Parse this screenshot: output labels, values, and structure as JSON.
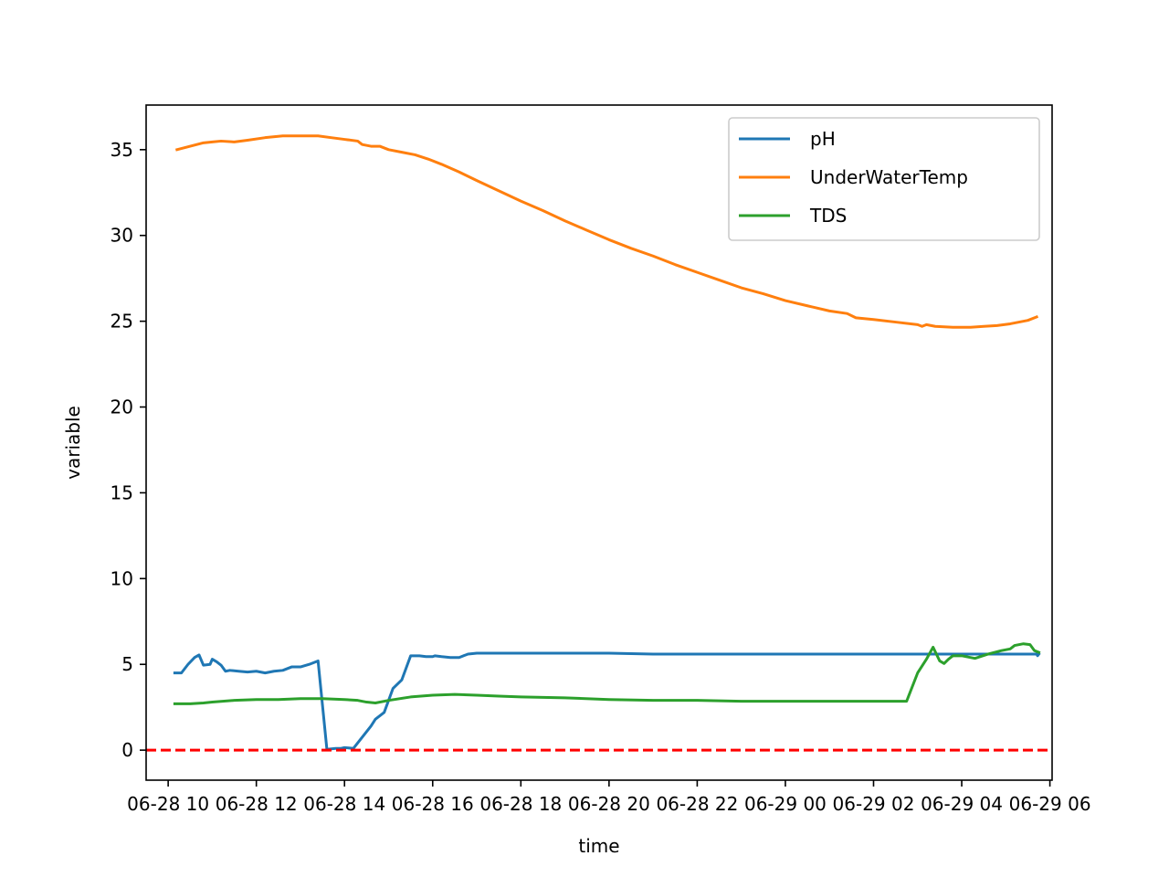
{
  "chart_data": {
    "type": "line",
    "title": "",
    "xlabel": "time",
    "ylabel": "variable",
    "x_ticks": [
      {
        "t": 10,
        "label": "06-28 10"
      },
      {
        "t": 12,
        "label": "06-28 12"
      },
      {
        "t": 14,
        "label": "06-28 14"
      },
      {
        "t": 16,
        "label": "06-28 16"
      },
      {
        "t": 18,
        "label": "06-28 18"
      },
      {
        "t": 20,
        "label": "06-28 20"
      },
      {
        "t": 22,
        "label": "06-28 22"
      },
      {
        "t": 24,
        "label": "06-29 00"
      },
      {
        "t": 26,
        "label": "06-29 02"
      },
      {
        "t": 28,
        "label": "06-29 04"
      },
      {
        "t": 30,
        "label": "06-29 06"
      }
    ],
    "y_ticks": [
      0,
      5,
      10,
      15,
      20,
      25,
      30,
      35
    ],
    "xlim": [
      9.5,
      30.05
    ],
    "ylim": [
      -1.75,
      37.6
    ],
    "grid": false,
    "legend_position": "top-right",
    "hline": {
      "value": 0,
      "color": "#ff0000",
      "style": "dashed"
    },
    "series": [
      {
        "name": "pH",
        "color": "#1f77b4",
        "x": [
          10.15,
          10.3,
          10.45,
          10.6,
          10.7,
          10.8,
          10.95,
          11.0,
          11.1,
          11.2,
          11.3,
          11.4,
          11.6,
          11.8,
          12.0,
          12.2,
          12.4,
          12.6,
          12.8,
          13.0,
          13.2,
          13.4,
          13.6,
          13.8,
          13.92,
          14.0,
          14.2,
          14.6,
          14.7,
          14.9,
          15.1,
          15.3,
          15.5,
          15.7,
          15.85,
          16.0,
          16.05,
          16.2,
          16.4,
          16.6,
          16.8,
          17.0,
          17.2,
          17.4,
          17.6,
          17.8,
          18.0,
          19.0,
          20.0,
          21.0,
          22.0,
          23.0,
          24.0,
          25.0,
          26.0,
          27.0,
          28.0,
          29.0,
          29.5,
          29.7,
          29.72,
          29.75
        ],
        "values": [
          4.5,
          4.5,
          5.0,
          5.4,
          5.55,
          4.95,
          5.0,
          5.3,
          5.15,
          4.95,
          4.6,
          4.65,
          4.6,
          4.55,
          4.6,
          4.5,
          4.6,
          4.65,
          4.85,
          4.85,
          5.0,
          5.2,
          0.05,
          0.1,
          0.1,
          0.15,
          0.1,
          1.4,
          1.8,
          2.2,
          3.6,
          4.1,
          5.5,
          5.5,
          5.45,
          5.45,
          5.5,
          5.45,
          5.4,
          5.4,
          5.6,
          5.65,
          5.65,
          5.65,
          5.65,
          5.65,
          5.65,
          5.65,
          5.65,
          5.6,
          5.6,
          5.6,
          5.6,
          5.6,
          5.6,
          5.6,
          5.6,
          5.6,
          5.6,
          5.6,
          5.5,
          5.6
        ]
      },
      {
        "name": "UnderWaterTemp",
        "color": "#ff7f0e",
        "x": [
          10.2,
          10.5,
          10.8,
          11.0,
          11.2,
          11.5,
          11.8,
          12.2,
          12.6,
          13.0,
          13.4,
          13.7,
          14.0,
          14.3,
          14.4,
          14.6,
          14.8,
          15.0,
          15.3,
          15.6,
          15.9,
          16.2,
          16.6,
          17.0,
          17.5,
          18.0,
          18.5,
          19.0,
          19.5,
          20.0,
          20.5,
          21.0,
          21.5,
          22.0,
          22.5,
          23.0,
          23.5,
          24.0,
          24.5,
          25.0,
          25.4,
          25.6,
          26.0,
          26.5,
          27.0,
          27.1,
          27.2,
          27.4,
          27.8,
          28.2,
          28.5,
          28.8,
          29.1,
          29.3,
          29.5,
          29.7
        ],
        "values": [
          35.0,
          35.2,
          35.4,
          35.45,
          35.5,
          35.45,
          35.55,
          35.7,
          35.8,
          35.8,
          35.8,
          35.7,
          35.6,
          35.5,
          35.3,
          35.2,
          35.2,
          35.0,
          34.85,
          34.7,
          34.45,
          34.15,
          33.7,
          33.2,
          32.6,
          32.0,
          31.45,
          30.85,
          30.3,
          29.75,
          29.25,
          28.8,
          28.3,
          27.85,
          27.4,
          26.95,
          26.6,
          26.2,
          25.9,
          25.6,
          25.45,
          25.2,
          25.1,
          24.95,
          24.8,
          24.7,
          24.8,
          24.7,
          24.65,
          24.65,
          24.7,
          24.75,
          24.85,
          24.95,
          25.05,
          25.25
        ]
      },
      {
        "name": "TDS",
        "color": "#2ca02c",
        "x": [
          10.15,
          10.5,
          10.8,
          11.0,
          11.5,
          12.0,
          12.5,
          13.0,
          13.5,
          14.0,
          14.3,
          14.5,
          14.7,
          15.0,
          15.5,
          16.0,
          16.5,
          17.0,
          17.5,
          18.0,
          19.0,
          20.0,
          21.0,
          22.0,
          23.0,
          24.0,
          25.0,
          26.0,
          26.75,
          27.0,
          27.2,
          27.35,
          27.5,
          27.6,
          27.7,
          27.8,
          28.0,
          28.3,
          28.6,
          28.9,
          29.1,
          29.2,
          29.4,
          29.55,
          29.65,
          29.75
        ],
        "values": [
          2.7,
          2.7,
          2.75,
          2.8,
          2.9,
          2.95,
          2.95,
          3.0,
          3.0,
          2.95,
          2.9,
          2.8,
          2.75,
          2.9,
          3.1,
          3.2,
          3.25,
          3.2,
          3.15,
          3.1,
          3.05,
          2.95,
          2.9,
          2.9,
          2.85,
          2.85,
          2.85,
          2.85,
          2.85,
          4.5,
          5.3,
          6.0,
          5.2,
          5.05,
          5.3,
          5.5,
          5.5,
          5.35,
          5.6,
          5.8,
          5.9,
          6.1,
          6.2,
          6.15,
          5.8,
          5.7
        ]
      }
    ]
  }
}
